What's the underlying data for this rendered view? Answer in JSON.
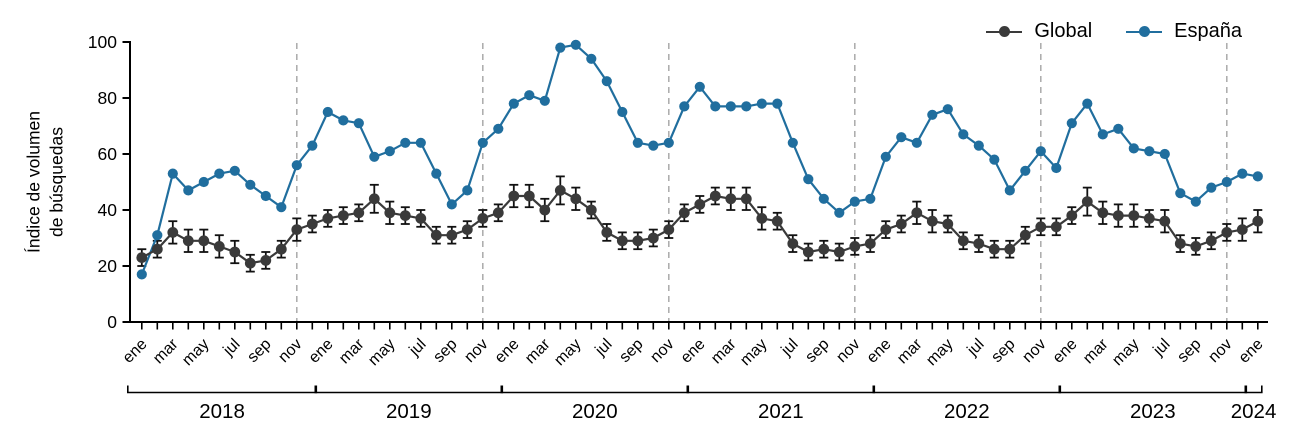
{
  "legend": {
    "items": [
      {
        "label": "Global",
        "color": "#3a3a3a"
      },
      {
        "label": "España",
        "color": "#206e9e"
      }
    ]
  },
  "y_axis": {
    "label_line1": "Índice de volumen",
    "label_line2": "de búsquedas"
  },
  "chart_data": {
    "type": "line",
    "title": "",
    "ylabel": "Índice de volumen de búsquedas",
    "ylim": [
      0,
      100
    ],
    "yticks": [
      0,
      20,
      40,
      60,
      80,
      100
    ],
    "grid": "dashed vertical lines at each November",
    "legend_position": "top-right",
    "years": [
      {
        "label": "2018",
        "months": 12
      },
      {
        "label": "2019",
        "months": 12
      },
      {
        "label": "2020",
        "months": 12
      },
      {
        "label": "2021",
        "months": 12
      },
      {
        "label": "2022",
        "months": 12
      },
      {
        "label": "2023",
        "months": 12
      },
      {
        "label": "2024",
        "months": 1
      }
    ],
    "month_tick_labels": [
      "ene",
      "mar",
      "may",
      "jul",
      "sep",
      "nov"
    ],
    "dashed_vlines_month_indices": [
      10,
      22,
      34,
      46,
      58,
      70
    ],
    "axis_color": "#000000",
    "gridline_color": "#aaaaaa",
    "errorbar_color": "#111111",
    "series": [
      {
        "name": "Global",
        "color": "#3a3a3a",
        "values": [
          23,
          26,
          32,
          29,
          29,
          27,
          25,
          21,
          22,
          26,
          33,
          35,
          37,
          38,
          39,
          44,
          39,
          38,
          37,
          31,
          31,
          33,
          37,
          39,
          45,
          45,
          40,
          47,
          44,
          40,
          32,
          29,
          29,
          30,
          33,
          39,
          42,
          45,
          44,
          44,
          37,
          36,
          28,
          25,
          26,
          25,
          27,
          28,
          33,
          35,
          39,
          36,
          35,
          29,
          28,
          26,
          26,
          31,
          34,
          34,
          38,
          43,
          39,
          38,
          38,
          37,
          36,
          28,
          27,
          29,
          32,
          33,
          36
        ],
        "errors": [
          3,
          3,
          4,
          4,
          4,
          4,
          4,
          3,
          3,
          3,
          4,
          3,
          3,
          3,
          3,
          5,
          4,
          3,
          3,
          3,
          3,
          3,
          3,
          3,
          4,
          4,
          4,
          5,
          4,
          3,
          3,
          3,
          3,
          3,
          3,
          3,
          3,
          3,
          4,
          4,
          4,
          3,
          3,
          3,
          3,
          3,
          3,
          3,
          3,
          3,
          4,
          4,
          3,
          3,
          3,
          3,
          3,
          3,
          3,
          3,
          3,
          5,
          4,
          4,
          4,
          3,
          4,
          3,
          3,
          3,
          3,
          4,
          4
        ]
      },
      {
        "name": "España",
        "color": "#206e9e",
        "values": [
          17,
          31,
          53,
          47,
          50,
          53,
          54,
          49,
          45,
          41,
          56,
          63,
          75,
          72,
          71,
          59,
          61,
          64,
          64,
          53,
          42,
          47,
          64,
          69,
          78,
          81,
          79,
          98,
          99,
          94,
          86,
          75,
          64,
          63,
          64,
          77,
          84,
          77,
          77,
          77,
          78,
          78,
          64,
          51,
          44,
          39,
          43,
          44,
          59,
          66,
          64,
          74,
          76,
          67,
          63,
          58,
          47,
          54,
          61,
          55,
          71,
          78,
          67,
          69,
          62,
          61,
          60,
          46,
          43,
          48,
          50,
          53,
          52
        ],
        "errors": null
      }
    ]
  }
}
